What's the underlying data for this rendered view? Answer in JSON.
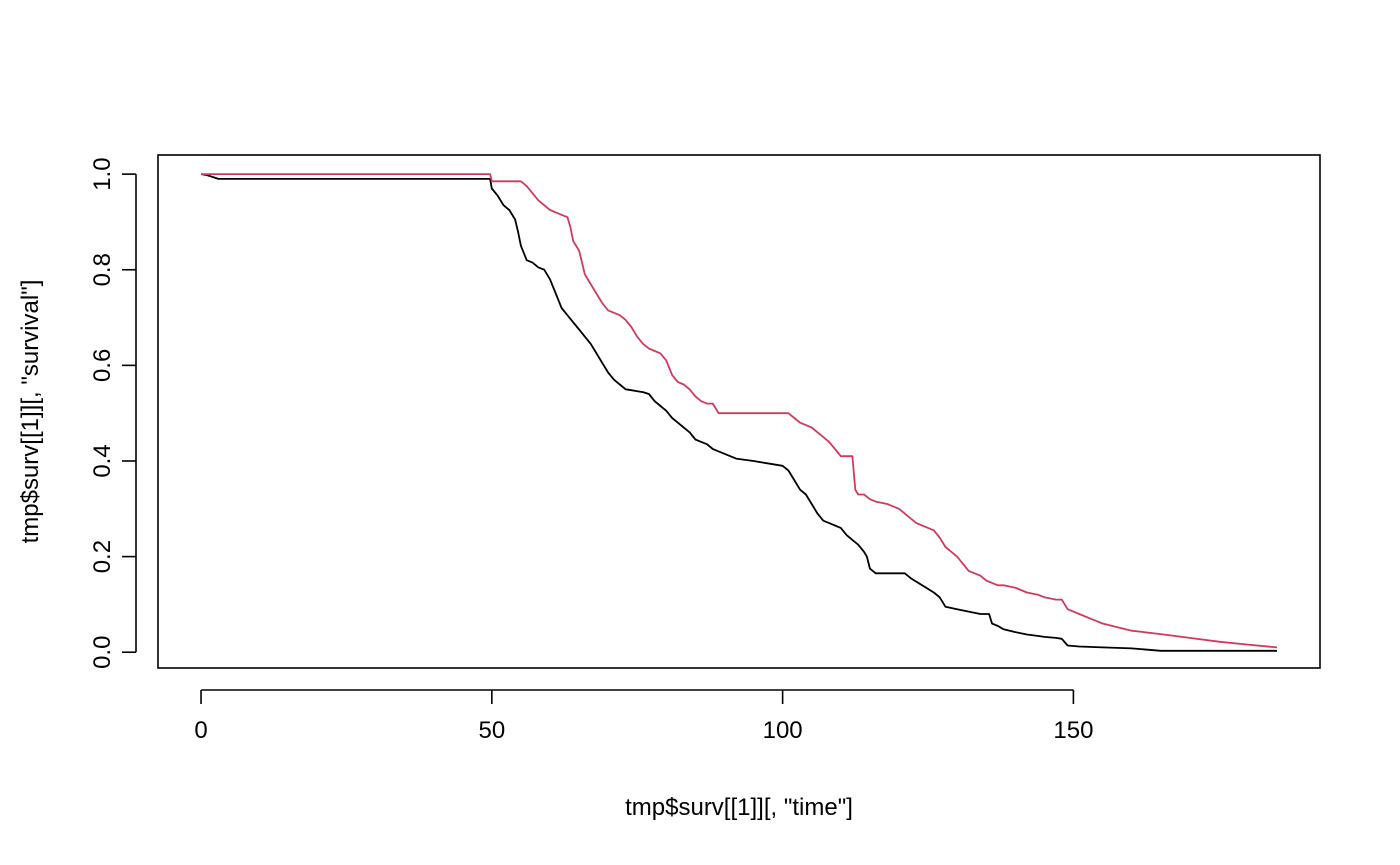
{
  "chart_data": {
    "type": "line",
    "title": "",
    "xlabel": "tmp$surv[[1]][, \"time\"]",
    "ylabel": "tmp$surv[[1]][, \"survival\"]",
    "xlim": [
      -7.4,
      192.4
    ],
    "ylim": [
      -0.033,
      1.04
    ],
    "x_ticks": [
      0,
      50,
      100,
      150
    ],
    "y_ticks": [
      0.0,
      0.2,
      0.4,
      0.6,
      0.8,
      1.0
    ],
    "x_tick_labels": [
      "0",
      "50",
      "100",
      "150"
    ],
    "y_tick_labels": [
      "0.0",
      "0.2",
      "0.4",
      "0.6",
      "0.8",
      "1.0"
    ],
    "grid": false,
    "legend": "none",
    "series": [
      {
        "color": "#000000",
        "x": [
          0,
          1,
          3,
          10,
          20,
          30,
          40,
          49.7,
          50,
          51,
          52,
          53,
          54,
          54.5,
          55,
          56,
          57,
          58,
          59,
          60,
          61,
          62,
          63,
          64,
          65,
          66,
          67,
          68,
          69,
          70,
          71,
          72,
          73,
          74,
          75,
          76,
          77,
          78,
          79,
          80,
          81,
          82,
          83,
          84,
          85,
          86,
          87,
          88,
          89,
          90,
          91,
          92,
          95,
          100,
          101,
          102,
          103,
          104,
          105,
          106,
          107,
          108,
          109,
          110,
          111,
          112,
          113,
          114,
          114.5,
          115,
          116,
          118,
          120,
          121,
          122,
          124,
          126,
          127,
          128,
          130,
          132,
          134,
          135.5,
          136,
          137,
          138,
          140,
          142,
          144,
          145,
          147,
          148,
          149,
          151,
          155,
          160,
          163,
          165,
          170,
          175,
          180,
          185
        ],
        "y": [
          1.0,
          0.998,
          0.99,
          0.99,
          0.99,
          0.99,
          0.99,
          0.99,
          0.97,
          0.955,
          0.935,
          0.925,
          0.905,
          0.88,
          0.85,
          0.82,
          0.815,
          0.805,
          0.8,
          0.78,
          0.75,
          0.72,
          0.705,
          0.69,
          0.675,
          0.66,
          0.645,
          0.625,
          0.605,
          0.585,
          0.57,
          0.56,
          0.55,
          0.548,
          0.546,
          0.544,
          0.54,
          0.525,
          0.515,
          0.505,
          0.49,
          0.48,
          0.47,
          0.46,
          0.445,
          0.44,
          0.435,
          0.425,
          0.42,
          0.415,
          0.41,
          0.405,
          0.4,
          0.39,
          0.38,
          0.36,
          0.34,
          0.33,
          0.31,
          0.29,
          0.275,
          0.27,
          0.265,
          0.26,
          0.245,
          0.235,
          0.225,
          0.21,
          0.2,
          0.175,
          0.165,
          0.165,
          0.165,
          0.165,
          0.155,
          0.14,
          0.125,
          0.115,
          0.095,
          0.09,
          0.085,
          0.08,
          0.08,
          0.06,
          0.055,
          0.048,
          0.042,
          0.037,
          0.034,
          0.032,
          0.03,
          0.028,
          0.014,
          0.012,
          0.01,
          0.008,
          0.005,
          0.003,
          0.003,
          0.003,
          0.003,
          0.003
        ]
      },
      {
        "color": "#d03a5c",
        "x": [
          0,
          10,
          20,
          30,
          40,
          49.7,
          50,
          55,
          56,
          57,
          58,
          59,
          60,
          61,
          62,
          63,
          63.5,
          64,
          65,
          66,
          67,
          68,
          69,
          70,
          71,
          72,
          73,
          74,
          75,
          76,
          77,
          78,
          79,
          80,
          81,
          82,
          83,
          84,
          85,
          86,
          87,
          88,
          89,
          90,
          95,
          100,
          101,
          102,
          103,
          104,
          105,
          106,
          107,
          108,
          109,
          110,
          111,
          112,
          112.5,
          113,
          114,
          115,
          116,
          118,
          120,
          121,
          122,
          123,
          124,
          125,
          126,
          127,
          128,
          129,
          130,
          131,
          132,
          133,
          134,
          135,
          136,
          137,
          138,
          140,
          142,
          144,
          145,
          147,
          148,
          149,
          151,
          153,
          155,
          160,
          165,
          170,
          175,
          180,
          185
        ],
        "y": [
          1.0,
          1.0,
          1.0,
          1.0,
          1.0,
          1.0,
          0.985,
          0.985,
          0.975,
          0.96,
          0.945,
          0.935,
          0.925,
          0.92,
          0.915,
          0.91,
          0.89,
          0.86,
          0.84,
          0.79,
          0.77,
          0.75,
          0.73,
          0.715,
          0.71,
          0.705,
          0.695,
          0.68,
          0.66,
          0.645,
          0.635,
          0.63,
          0.625,
          0.61,
          0.58,
          0.565,
          0.56,
          0.55,
          0.535,
          0.525,
          0.52,
          0.52,
          0.5,
          0.5,
          0.5,
          0.5,
          0.5,
          0.49,
          0.48,
          0.475,
          0.47,
          0.46,
          0.45,
          0.44,
          0.425,
          0.41,
          0.41,
          0.41,
          0.34,
          0.33,
          0.33,
          0.32,
          0.315,
          0.31,
          0.3,
          0.29,
          0.28,
          0.27,
          0.265,
          0.26,
          0.255,
          0.24,
          0.22,
          0.21,
          0.2,
          0.185,
          0.17,
          0.165,
          0.16,
          0.15,
          0.145,
          0.14,
          0.14,
          0.135,
          0.125,
          0.12,
          0.115,
          0.11,
          0.11,
          0.09,
          0.08,
          0.07,
          0.06,
          0.045,
          0.038,
          0.03,
          0.022,
          0.016,
          0.01
        ]
      }
    ]
  }
}
